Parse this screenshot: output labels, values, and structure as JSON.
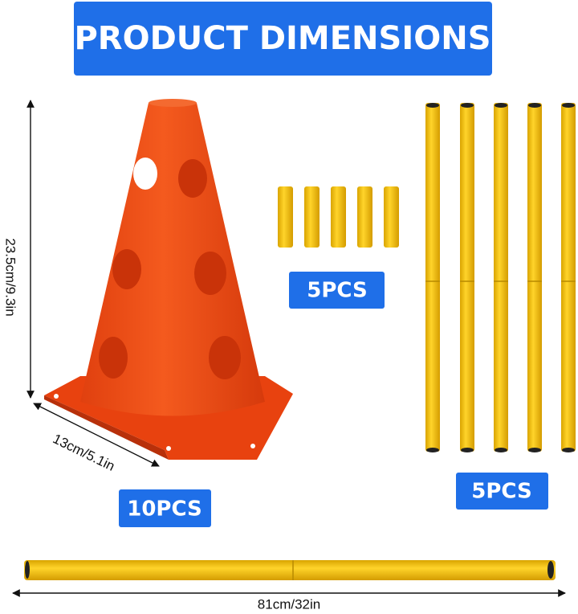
{
  "header": {
    "title": "PRODUCT DIMENSIONS"
  },
  "cone": {
    "height_label": "23.5cm/9.3in",
    "base_label": "13cm/5.1in",
    "quantity": "10PCS"
  },
  "connectors": {
    "quantity": "5PCS"
  },
  "poles": {
    "quantity": "5PCS",
    "length_label": "81cm/32in"
  }
}
